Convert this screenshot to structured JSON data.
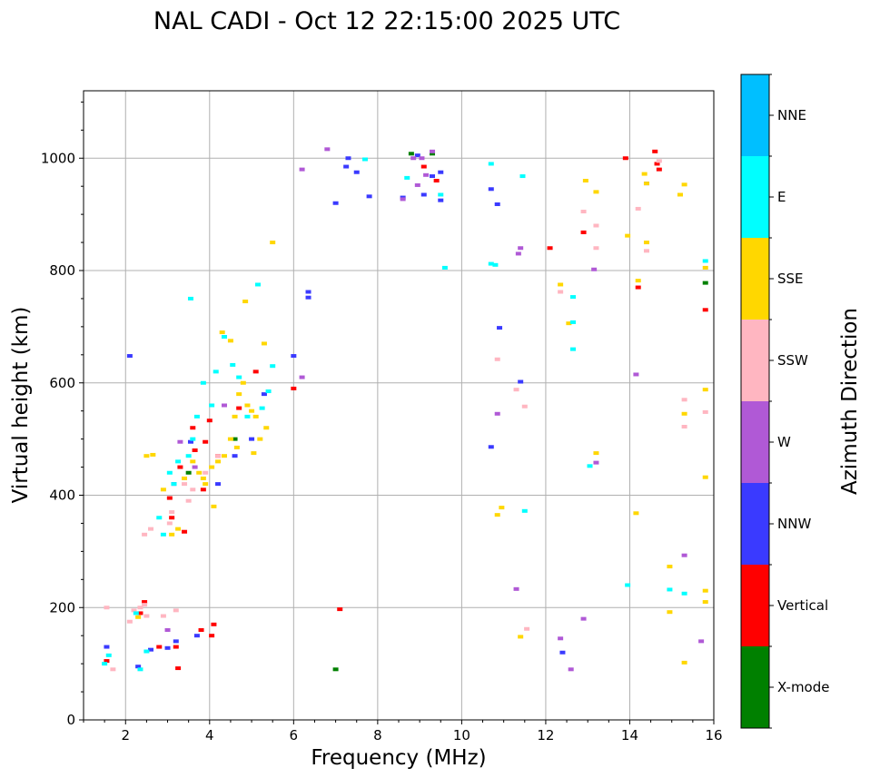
{
  "chart_data": {
    "type": "scatter",
    "title": "NAL CADI - Oct 12 22:15:00 2025 UTC",
    "xlabel": "Frequency (MHz)",
    "ylabel": "Virtual height (km)",
    "xlim": [
      1,
      16
    ],
    "ylim": [
      0,
      1120
    ],
    "xticks": [
      2,
      4,
      6,
      8,
      10,
      12,
      14,
      16
    ],
    "yticks": [
      0,
      200,
      400,
      600,
      800,
      1000
    ],
    "grid": true,
    "colorbar": {
      "label": "Azimuth Direction",
      "categories": [
        {
          "name": "X-mode",
          "color": "#008000"
        },
        {
          "name": "Vertical",
          "color": "#ff0000"
        },
        {
          "name": "NNW",
          "color": "#3a3aff"
        },
        {
          "name": "W",
          "color": "#b059d6"
        },
        {
          "name": "SSW",
          "color": "#ffb6c1"
        },
        {
          "name": "SSE",
          "color": "#ffd700"
        },
        {
          "name": "E",
          "color": "#00ffff"
        },
        {
          "name": "NNE",
          "color": "#00bfff"
        }
      ]
    },
    "series": [
      {
        "name": "X-mode",
        "points": [
          [
            7.0,
            90
          ],
          [
            8.8,
            1008
          ],
          [
            9.3,
            1008
          ],
          [
            15.8,
            778
          ],
          [
            3.5,
            440
          ],
          [
            4.6,
            500
          ]
        ]
      },
      {
        "name": "Vertical",
        "points": [
          [
            1.55,
            105
          ],
          [
            2.35,
            190
          ],
          [
            2.8,
            130
          ],
          [
            3.05,
            395
          ],
          [
            3.2,
            130
          ],
          [
            3.3,
            450
          ],
          [
            3.6,
            520
          ],
          [
            3.65,
            480
          ],
          [
            3.8,
            160
          ],
          [
            3.9,
            495
          ],
          [
            4.0,
            533
          ],
          [
            4.1,
            170
          ],
          [
            4.05,
            150
          ],
          [
            3.1,
            360
          ],
          [
            3.4,
            335
          ],
          [
            4.2,
            470
          ],
          [
            3.85,
            410
          ],
          [
            9.1,
            985
          ],
          [
            9.4,
            960
          ],
          [
            12.1,
            840
          ],
          [
            12.9,
            868
          ],
          [
            13.9,
            1000
          ],
          [
            14.6,
            1012
          ],
          [
            14.65,
            990
          ],
          [
            14.7,
            980
          ],
          [
            15.8,
            730
          ],
          [
            14.2,
            770
          ],
          [
            7.1,
            197
          ],
          [
            3.25,
            92
          ],
          [
            2.45,
            210
          ],
          [
            6.0,
            590
          ],
          [
            5.1,
            620
          ],
          [
            4.7,
            555
          ]
        ]
      },
      {
        "name": "NNW",
        "points": [
          [
            1.55,
            130
          ],
          [
            2.1,
            648
          ],
          [
            2.3,
            95
          ],
          [
            2.6,
            125
          ],
          [
            3.0,
            128
          ],
          [
            3.2,
            140
          ],
          [
            3.7,
            150
          ],
          [
            4.2,
            420
          ],
          [
            4.6,
            470
          ],
          [
            5.0,
            500
          ],
          [
            5.3,
            580
          ],
          [
            6.0,
            648
          ],
          [
            6.35,
            762
          ],
          [
            6.35,
            752
          ],
          [
            7.0,
            920
          ],
          [
            7.3,
            1000
          ],
          [
            7.5,
            975
          ],
          [
            7.8,
            932
          ],
          [
            8.6,
            930
          ],
          [
            8.95,
            1005
          ],
          [
            9.1,
            935
          ],
          [
            9.5,
            975
          ],
          [
            9.5,
            925
          ],
          [
            10.7,
            945
          ],
          [
            10.7,
            486
          ],
          [
            10.85,
            918
          ],
          [
            10.9,
            698
          ],
          [
            11.4,
            602
          ],
          [
            12.4,
            120
          ],
          [
            14.4,
            955
          ],
          [
            7.25,
            985
          ],
          [
            9.3,
            968
          ],
          [
            3.15,
            420
          ],
          [
            3.55,
            495
          ]
        ]
      },
      {
        "name": "W",
        "points": [
          [
            3.0,
            160
          ],
          [
            3.3,
            495
          ],
          [
            6.2,
            610
          ],
          [
            6.2,
            980
          ],
          [
            6.8,
            1016
          ],
          [
            8.6,
            927
          ],
          [
            8.85,
            1000
          ],
          [
            8.95,
            952
          ],
          [
            9.05,
            1000
          ],
          [
            9.3,
            1012
          ],
          [
            10.85,
            545
          ],
          [
            11.3,
            233
          ],
          [
            11.35,
            830
          ],
          [
            11.4,
            840
          ],
          [
            12.35,
            145
          ],
          [
            12.6,
            90
          ],
          [
            12.9,
            180
          ],
          [
            13.2,
            458
          ],
          [
            14.15,
            615
          ],
          [
            15.3,
            293
          ],
          [
            15.7,
            140
          ],
          [
            3.65,
            450
          ],
          [
            4.35,
            560
          ],
          [
            9.15,
            970
          ],
          [
            13.15,
            802
          ]
        ]
      },
      {
        "name": "SSW",
        "points": [
          [
            1.55,
            200
          ],
          [
            1.7,
            90
          ],
          [
            2.1,
            175
          ],
          [
            2.35,
            200
          ],
          [
            2.45,
            205
          ],
          [
            2.5,
            185
          ],
          [
            2.45,
            330
          ],
          [
            2.6,
            340
          ],
          [
            2.9,
            185
          ],
          [
            3.2,
            195
          ],
          [
            3.5,
            390
          ],
          [
            3.6,
            410
          ],
          [
            3.1,
            370
          ],
          [
            3.9,
            440
          ],
          [
            4.2,
            470
          ],
          [
            10.85,
            642
          ],
          [
            11.3,
            588
          ],
          [
            11.5,
            558
          ],
          [
            11.55,
            162
          ],
          [
            12.35,
            762
          ],
          [
            12.9,
            905
          ],
          [
            13.2,
            840
          ],
          [
            13.2,
            880
          ],
          [
            14.2,
            910
          ],
          [
            14.4,
            835
          ],
          [
            14.7,
            995
          ],
          [
            15.3,
            570
          ],
          [
            15.3,
            522
          ],
          [
            15.8,
            548
          ],
          [
            3.4,
            420
          ],
          [
            3.05,
            350
          ],
          [
            2.2,
            195
          ]
        ]
      },
      {
        "name": "SSE",
        "points": [
          [
            2.3,
            183
          ],
          [
            2.5,
            470
          ],
          [
            2.65,
            472
          ],
          [
            2.9,
            410
          ],
          [
            3.1,
            330
          ],
          [
            3.25,
            340
          ],
          [
            3.4,
            430
          ],
          [
            3.6,
            460
          ],
          [
            3.75,
            440
          ],
          [
            3.9,
            420
          ],
          [
            4.05,
            450
          ],
          [
            4.2,
            460
          ],
          [
            4.35,
            470
          ],
          [
            4.5,
            500
          ],
          [
            4.6,
            540
          ],
          [
            4.7,
            580
          ],
          [
            4.8,
            600
          ],
          [
            4.9,
            560
          ],
          [
            5.0,
            550
          ],
          [
            5.1,
            540
          ],
          [
            5.2,
            500
          ],
          [
            5.35,
            520
          ],
          [
            5.5,
            850
          ],
          [
            4.3,
            690
          ],
          [
            4.5,
            675
          ],
          [
            4.85,
            745
          ],
          [
            5.3,
            670
          ],
          [
            10.85,
            365
          ],
          [
            10.95,
            378
          ],
          [
            11.4,
            148
          ],
          [
            12.35,
            775
          ],
          [
            12.55,
            706
          ],
          [
            12.95,
            960
          ],
          [
            13.2,
            940
          ],
          [
            13.2,
            475
          ],
          [
            13.95,
            862
          ],
          [
            14.15,
            368
          ],
          [
            14.2,
            782
          ],
          [
            14.4,
            955
          ],
          [
            14.4,
            850
          ],
          [
            14.35,
            972
          ],
          [
            14.95,
            273
          ],
          [
            14.95,
            192
          ],
          [
            15.3,
            953
          ],
          [
            15.3,
            545
          ],
          [
            15.3,
            102
          ],
          [
            15.8,
            588
          ],
          [
            15.8,
            805
          ],
          [
            15.8,
            432
          ],
          [
            15.8,
            210
          ],
          [
            15.8,
            230
          ],
          [
            15.2,
            935
          ],
          [
            4.65,
            485
          ],
          [
            5.05,
            475
          ],
          [
            3.85,
            430
          ],
          [
            4.1,
            380
          ]
        ]
      },
      {
        "name": "E",
        "points": [
          [
            1.5,
            100
          ],
          [
            1.6,
            115
          ],
          [
            2.35,
            90
          ],
          [
            2.25,
            190
          ],
          [
            2.5,
            122
          ],
          [
            2.9,
            330
          ],
          [
            3.05,
            440
          ],
          [
            3.15,
            420
          ],
          [
            3.5,
            470
          ],
          [
            3.6,
            500
          ],
          [
            3.7,
            540
          ],
          [
            3.85,
            600
          ],
          [
            3.55,
            750
          ],
          [
            4.15,
            620
          ],
          [
            4.35,
            682
          ],
          [
            4.55,
            632
          ],
          [
            4.7,
            610
          ],
          [
            4.9,
            540
          ],
          [
            5.15,
            775
          ],
          [
            5.5,
            630
          ],
          [
            5.4,
            585
          ],
          [
            7.7,
            998
          ],
          [
            8.7,
            965
          ],
          [
            9.5,
            935
          ],
          [
            9.6,
            805
          ],
          [
            10.7,
            812
          ],
          [
            10.8,
            810
          ],
          [
            10.7,
            990
          ],
          [
            11.45,
            968
          ],
          [
            11.5,
            372
          ],
          [
            12.65,
            753
          ],
          [
            12.65,
            660
          ],
          [
            12.65,
            708
          ],
          [
            13.05,
            452
          ],
          [
            13.95,
            240
          ],
          [
            14.95,
            232
          ],
          [
            15.3,
            225
          ],
          [
            15.8,
            817
          ],
          [
            3.25,
            460
          ],
          [
            4.05,
            560
          ],
          [
            5.25,
            555
          ],
          [
            2.8,
            360
          ]
        ]
      }
    ]
  }
}
